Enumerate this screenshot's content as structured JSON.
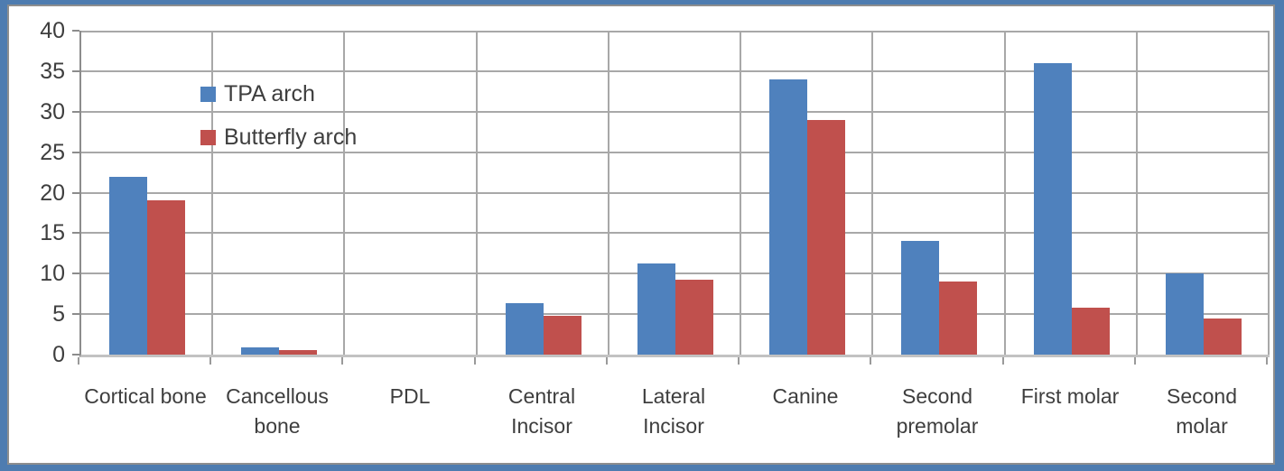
{
  "colors": {
    "frame_blue": "#4e7cb0",
    "inner_border_gray": "#8e8e8e",
    "background": "#ffffff",
    "gridline": "#a8a8a8",
    "axis_line": "#8c8c8c",
    "baseline": "#c2c2c2",
    "text": "#3e3e3e",
    "series_blue": "#4F81BD",
    "series_red": "#C0504D"
  },
  "chart_data": {
    "type": "bar",
    "title": "",
    "xlabel": "",
    "ylabel": "",
    "ylim": [
      0,
      40
    ],
    "ytick_interval": 5,
    "yticks": [
      "40",
      "35",
      "30",
      "25",
      "20",
      "15",
      "10",
      "5",
      "0"
    ],
    "grid": true,
    "legend_position": "inside-top-left",
    "categories": [
      "Cortical bone",
      "Cancellous bone",
      "PDL",
      "Central Incisor",
      "Lateral Incisor",
      "Canine",
      "Second premolar",
      "First molar",
      "Second molar"
    ],
    "category_lines": [
      [
        "Cortical bone"
      ],
      [
        "Cancellous",
        "bone"
      ],
      [
        "PDL"
      ],
      [
        "Central",
        "Incisor"
      ],
      [
        "Lateral",
        "Incisor"
      ],
      [
        "Canine"
      ],
      [
        "Second",
        "premolar"
      ],
      [
        "First molar"
      ],
      [
        "Second",
        "molar"
      ]
    ],
    "series": [
      {
        "name": "TPA arch",
        "color": "#4F81BD",
        "values": [
          22,
          0.9,
          0,
          6.3,
          11.3,
          34,
          14,
          36,
          10
        ]
      },
      {
        "name": "Butterfly arch",
        "color": "#C0504D",
        "values": [
          19,
          0.6,
          0,
          4.8,
          9.3,
          29,
          9,
          5.8,
          4.5
        ]
      }
    ]
  }
}
